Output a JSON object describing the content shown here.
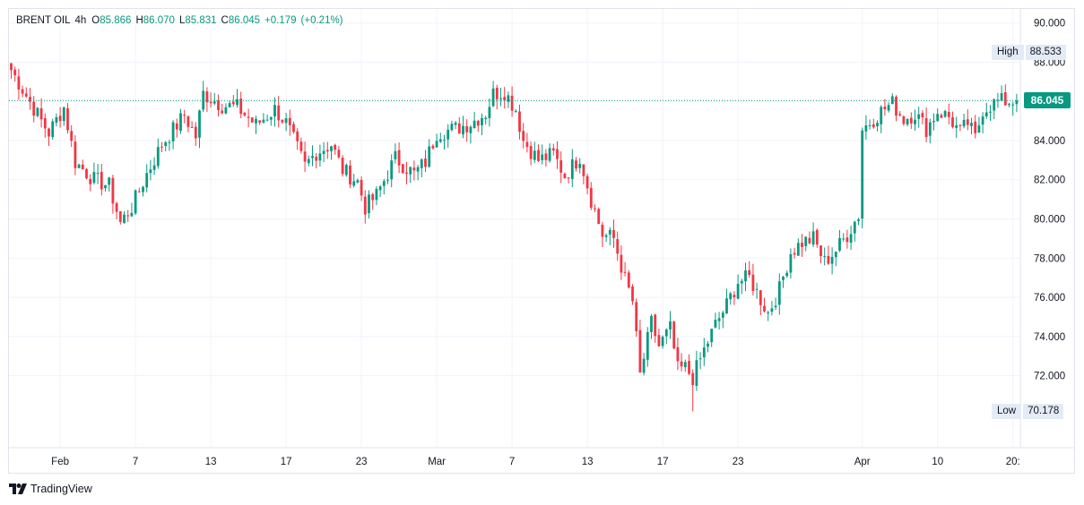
{
  "legend": {
    "symbol": "BRENT OIL",
    "interval": "4h",
    "open_label": "O",
    "open": "85.866",
    "high_label": "H",
    "high": "86.070",
    "low_label": "L",
    "low": "85.831",
    "close_label": "C",
    "close": "86.045",
    "change": "+0.179",
    "change_pct": "(+0.21%)"
  },
  "high_marker": {
    "label": "High",
    "value": "88.533"
  },
  "low_marker": {
    "label": "Low",
    "value": "70.178"
  },
  "last_price": "86.045",
  "brand": "TradingView",
  "colors": {
    "up": "#089981",
    "down": "#f23645",
    "grid": "#f0f3fa",
    "axis_text": "#131722"
  },
  "chart_data": {
    "type": "candlestick",
    "title": "BRENT OIL",
    "interval": "4h",
    "y_ticks": [
      "90.000",
      "88.000",
      "86.000",
      "84.000",
      "82.000",
      "80.000",
      "78.000",
      "76.000",
      "74.000",
      "72.000"
    ],
    "y_range": [
      69.0,
      91.0
    ],
    "x_ticks": [
      {
        "label": "Feb",
        "bar": 13
      },
      {
        "label": "7",
        "bar": 33
      },
      {
        "label": "13",
        "bar": 53
      },
      {
        "label": "17",
        "bar": 73
      },
      {
        "label": "23",
        "bar": 93
      },
      {
        "label": "Mar",
        "bar": 113
      },
      {
        "label": "7",
        "bar": 133
      },
      {
        "label": "13",
        "bar": 153
      },
      {
        "label": "17",
        "bar": 173
      },
      {
        "label": "23",
        "bar": 193
      },
      {
        "label": "Apr",
        "bar": 226
      },
      {
        "label": "10",
        "bar": 246
      },
      {
        "label": "20:",
        "bar": 266
      }
    ],
    "bar_count": 268,
    "close_keypoints": [
      [
        0,
        87.6
      ],
      [
        4,
        86.3
      ],
      [
        8,
        85.0
      ],
      [
        10,
        84.4
      ],
      [
        14,
        85.7
      ],
      [
        17,
        82.9
      ],
      [
        22,
        82.0
      ],
      [
        26,
        81.7
      ],
      [
        29,
        79.8
      ],
      [
        32,
        80.6
      ],
      [
        36,
        82.3
      ],
      [
        40,
        83.8
      ],
      [
        46,
        85.3
      ],
      [
        49,
        84.2
      ],
      [
        51,
        86.4
      ],
      [
        56,
        85.8
      ],
      [
        60,
        85.7
      ],
      [
        65,
        84.8
      ],
      [
        70,
        85.6
      ],
      [
        73,
        84.9
      ],
      [
        78,
        82.7
      ],
      [
        81,
        83.4
      ],
      [
        85,
        83.8
      ],
      [
        88,
        82.5
      ],
      [
        92,
        81.9
      ],
      [
        94,
        80.6
      ],
      [
        97,
        81.2
      ],
      [
        102,
        83.1
      ],
      [
        107,
        82.3
      ],
      [
        110,
        82.9
      ],
      [
        113,
        84.4
      ],
      [
        118,
        84.6
      ],
      [
        122,
        84.9
      ],
      [
        126,
        85.4
      ],
      [
        128,
        86.4
      ],
      [
        131,
        86.5
      ],
      [
        134,
        85.6
      ],
      [
        136,
        84.0
      ],
      [
        140,
        83.0
      ],
      [
        144,
        83.3
      ],
      [
        147,
        82.2
      ],
      [
        151,
        83.2
      ],
      [
        154,
        81.0
      ],
      [
        157,
        79.2
      ],
      [
        160,
        79.0
      ],
      [
        163,
        76.9
      ],
      [
        165,
        75.8
      ],
      [
        167,
        72.0
      ],
      [
        170,
        74.7
      ],
      [
        172,
        73.5
      ],
      [
        175,
        74.4
      ],
      [
        177,
        72.3
      ],
      [
        179,
        72.4
      ],
      [
        181,
        71.9
      ],
      [
        184,
        73.3
      ],
      [
        187,
        74.6
      ],
      [
        190,
        75.6
      ],
      [
        193,
        76.8
      ],
      [
        196,
        77.0
      ],
      [
        199,
        75.9
      ],
      [
        201,
        75.2
      ],
      [
        204,
        76.4
      ],
      [
        207,
        78.3
      ],
      [
        210,
        78.8
      ],
      [
        213,
        79.0
      ],
      [
        216,
        77.8
      ],
      [
        219,
        78.4
      ],
      [
        222,
        79.2
      ],
      [
        225,
        80.2
      ],
      [
        226,
        84.6
      ],
      [
        229,
        85.1
      ],
      [
        231,
        85.5
      ],
      [
        234,
        85.9
      ],
      [
        237,
        85.1
      ],
      [
        240,
        85.4
      ],
      [
        243,
        84.6
      ],
      [
        246,
        85.5
      ],
      [
        249,
        85.2
      ],
      [
        252,
        84.4
      ],
      [
        254,
        84.9
      ],
      [
        256,
        84.1
      ],
      [
        258,
        85.6
      ],
      [
        262,
        86.0
      ]
    ],
    "last_close": 86.045,
    "high": 88.533,
    "low": 70.178
  }
}
